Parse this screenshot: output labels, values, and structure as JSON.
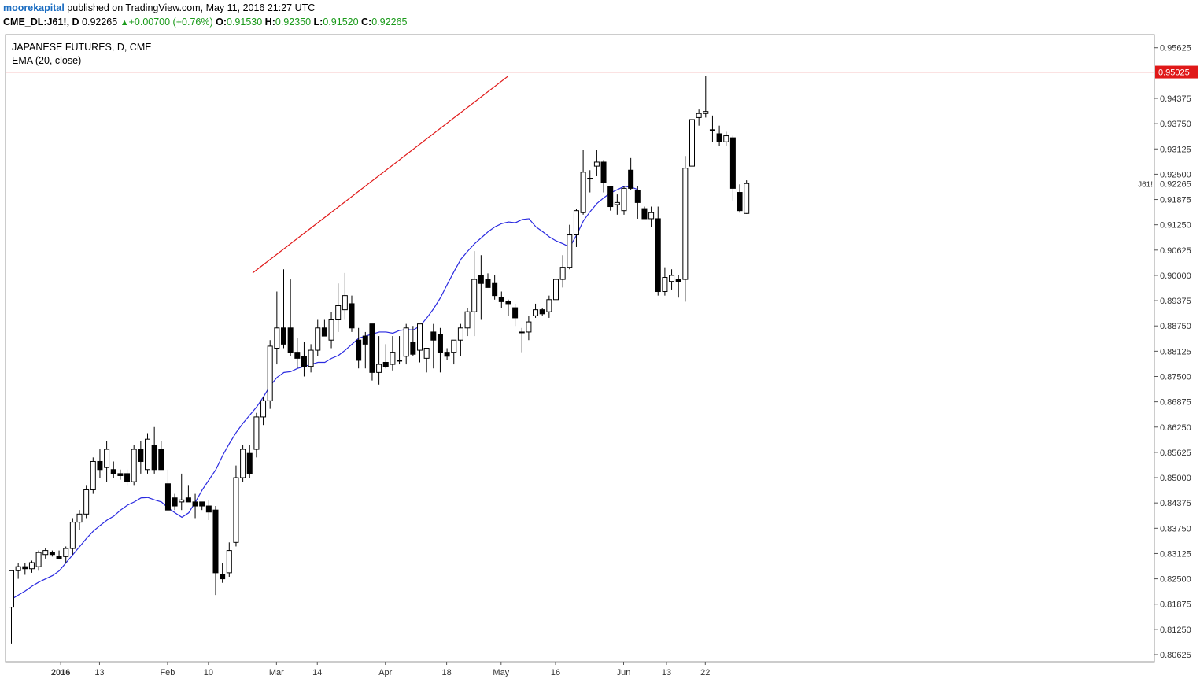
{
  "header": {
    "author": "moorekapital",
    "published_text": "published on TradingView.com, May 11, 2016 21:27 UTC",
    "symbol": "CME_DL:J61!, D",
    "last": "0.92265",
    "change": "+0.00700 (+0.76%)",
    "o_label": "O:",
    "o": "0.91530",
    "h_label": "H:",
    "h": "0.92350",
    "l_label": "L:",
    "l": "0.91520",
    "c_label": "C:",
    "c": "0.92265"
  },
  "legend": {
    "title": "JAPANESE FUTURES, D, CME",
    "indicator": "EMA (20, close)"
  },
  "colors": {
    "ema": "#2a2ae0",
    "trendline": "#e01818",
    "resistance": "#e01818",
    "axis": "#555555",
    "candle_up_fill": "#ffffff",
    "candle_down_fill": "#000000"
  },
  "chart_data": {
    "type": "candlestick",
    "symbol_badge": "J61!",
    "y_ticks": [
      "0.95625",
      "0.94375",
      "0.93750",
      "0.93125",
      "0.92500",
      "0.91875",
      "0.91250",
      "0.90625",
      "0.90000",
      "0.89375",
      "0.88750",
      "0.88125",
      "0.87500",
      "0.86875",
      "0.86250",
      "0.85625",
      "0.85000",
      "0.84375",
      "0.83750",
      "0.83125",
      "0.82500",
      "0.81875",
      "0.81250",
      "0.80625"
    ],
    "ylim": [
      0.8045,
      0.9595
    ],
    "x_ticks": [
      {
        "label": "2016",
        "idx": 7.3,
        "bold": true
      },
      {
        "label": "13",
        "idx": 13
      },
      {
        "label": "Feb",
        "idx": 23
      },
      {
        "label": "10",
        "idx": 29
      },
      {
        "label": "Mar",
        "idx": 39
      },
      {
        "label": "14",
        "idx": 45
      },
      {
        "label": "Apr",
        "idx": 55
      },
      {
        "label": "18",
        "idx": 64
      },
      {
        "label": "May",
        "idx": 72
      },
      {
        "label": "16",
        "idx": 80
      },
      {
        "label": "Jun",
        "idx": 90
      },
      {
        "label": "13",
        "idx": 96.3
      },
      {
        "label": "22",
        "idx": 102
      }
    ],
    "resistance": {
      "value": 0.95025,
      "label": "0.95025"
    },
    "last_price": {
      "value": 0.92265,
      "label": "0.92265"
    },
    "trendline": [
      {
        "idx": 35.5,
        "value": 0.9006
      },
      {
        "idx": 73.0,
        "value": 0.9492
      }
    ],
    "candles": [
      [
        0.818,
        0.827,
        0.809,
        0.827
      ],
      [
        0.827,
        0.829,
        0.825,
        0.828
      ],
      [
        0.828,
        0.829,
        0.826,
        0.8275
      ],
      [
        0.8275,
        0.8295,
        0.8265,
        0.829
      ],
      [
        0.828,
        0.832,
        0.827,
        0.8315
      ],
      [
        0.831,
        0.8325,
        0.83,
        0.832
      ],
      [
        0.8315,
        0.832,
        0.8305,
        0.831
      ],
      [
        0.8305,
        0.832,
        0.83,
        0.83
      ],
      [
        0.8305,
        0.833,
        0.829,
        0.8325
      ],
      [
        0.8325,
        0.84,
        0.831,
        0.839
      ],
      [
        0.839,
        0.842,
        0.837,
        0.841
      ],
      [
        0.841,
        0.848,
        0.84,
        0.847
      ],
      [
        0.847,
        0.855,
        0.846,
        0.854
      ],
      [
        0.854,
        0.857,
        0.85,
        0.852
      ],
      [
        0.8525,
        0.859,
        0.849,
        0.857
      ],
      [
        0.852,
        0.854,
        0.85,
        0.851
      ],
      [
        0.851,
        0.852,
        0.8495,
        0.8505
      ],
      [
        0.851,
        0.852,
        0.848,
        0.849
      ],
      [
        0.849,
        0.858,
        0.848,
        0.857
      ],
      [
        0.857,
        0.859,
        0.851,
        0.854
      ],
      [
        0.852,
        0.861,
        0.851,
        0.8595
      ],
      [
        0.858,
        0.8625,
        0.851,
        0.852
      ],
      [
        0.857,
        0.859,
        0.852,
        0.852
      ],
      [
        0.8485,
        0.852,
        0.8425,
        0.842
      ],
      [
        0.845,
        0.846,
        0.842,
        0.843
      ],
      [
        0.844,
        0.851,
        0.842,
        0.8445
      ],
      [
        0.845,
        0.848,
        0.844,
        0.844
      ],
      [
        0.844,
        0.846,
        0.84,
        0.843
      ],
      [
        0.844,
        0.844,
        0.842,
        0.843
      ],
      [
        0.843,
        0.8445,
        0.8395,
        0.8415
      ],
      [
        0.842,
        0.843,
        0.821,
        0.8265
      ],
      [
        0.826,
        0.829,
        0.824,
        0.825
      ],
      [
        0.8265,
        0.834,
        0.8255,
        0.832
      ],
      [
        0.834,
        0.853,
        0.833,
        0.85
      ],
      [
        0.85,
        0.858,
        0.849,
        0.857
      ],
      [
        0.856,
        0.858,
        0.85,
        0.851
      ],
      [
        0.857,
        0.866,
        0.855,
        0.865
      ],
      [
        0.865,
        0.87,
        0.863,
        0.869
      ],
      [
        0.869,
        0.884,
        0.867,
        0.8825
      ],
      [
        0.882,
        0.896,
        0.878,
        0.887
      ],
      [
        0.887,
        0.9015,
        0.882,
        0.883
      ],
      [
        0.887,
        0.899,
        0.88,
        0.881
      ],
      [
        0.881,
        0.8845,
        0.877,
        0.8795
      ],
      [
        0.88,
        0.8835,
        0.875,
        0.8775
      ],
      [
        0.8775,
        0.883,
        0.876,
        0.8815
      ],
      [
        0.8815,
        0.889,
        0.88,
        0.887
      ],
      [
        0.887,
        0.889,
        0.885,
        0.885
      ],
      [
        0.884,
        0.891,
        0.882,
        0.889
      ],
      [
        0.889,
        0.898,
        0.886,
        0.8925
      ],
      [
        0.8915,
        0.9006,
        0.889,
        0.895
      ],
      [
        0.893,
        0.895,
        0.886,
        0.887
      ],
      [
        0.884,
        0.887,
        0.877,
        0.879
      ],
      [
        0.885,
        0.886,
        0.877,
        0.883
      ],
      [
        0.888,
        0.887,
        0.874,
        0.876
      ],
      [
        0.876,
        0.885,
        0.873,
        0.878
      ],
      [
        0.8785,
        0.883,
        0.877,
        0.8775
      ],
      [
        0.878,
        0.885,
        0.8765,
        0.881
      ],
      [
        0.879,
        0.885,
        0.878,
        0.879
      ],
      [
        0.88,
        0.888,
        0.878,
        0.887
      ],
      [
        0.8835,
        0.8875,
        0.88,
        0.8805
      ],
      [
        0.8815,
        0.888,
        0.8785,
        0.888
      ],
      [
        0.8795,
        0.882,
        0.876,
        0.882
      ],
      [
        0.886,
        0.888,
        0.877,
        0.884
      ],
      [
        0.8855,
        0.887,
        0.876,
        0.881
      ],
      [
        0.881,
        0.882,
        0.879,
        0.88
      ],
      [
        0.881,
        0.884,
        0.878,
        0.884
      ],
      [
        0.884,
        0.888,
        0.88,
        0.887
      ],
      [
        0.887,
        0.892,
        0.885,
        0.891
      ],
      [
        0.891,
        0.906,
        0.885,
        0.899
      ],
      [
        0.9,
        0.905,
        0.889,
        0.898
      ],
      [
        0.899,
        0.9005,
        0.898,
        0.897
      ],
      [
        0.898,
        0.9,
        0.894,
        0.895
      ],
      [
        0.8945,
        0.896,
        0.892,
        0.8935
      ],
      [
        0.8935,
        0.894,
        0.89,
        0.893
      ],
      [
        0.892,
        0.893,
        0.8875,
        0.8895
      ],
      [
        0.886,
        0.887,
        0.881,
        0.886
      ],
      [
        0.886,
        0.89,
        0.884,
        0.8885
      ],
      [
        0.89,
        0.893,
        0.8895,
        0.8915
      ],
      [
        0.8915,
        0.892,
        0.89,
        0.8905
      ],
      [
        0.891,
        0.895,
        0.8895,
        0.894
      ],
      [
        0.894,
        0.902,
        0.893,
        0.899
      ],
      [
        0.899,
        0.905,
        0.897,
        0.902
      ],
      [
        0.902,
        0.9125,
        0.9015,
        0.91
      ],
      [
        0.91,
        0.9165,
        0.907,
        0.916
      ],
      [
        0.9155,
        0.931,
        0.915,
        0.9255
      ],
      [
        0.924,
        0.926,
        0.9205,
        0.924
      ],
      [
        0.927,
        0.931,
        0.9245,
        0.928
      ],
      [
        0.928,
        0.9285,
        0.9205,
        0.923
      ],
      [
        0.922,
        0.922,
        0.916,
        0.917
      ],
      [
        0.9175,
        0.92,
        0.915,
        0.918
      ],
      [
        0.916,
        0.922,
        0.915,
        0.9215
      ],
      [
        0.926,
        0.929,
        0.921,
        0.9215
      ],
      [
        0.921,
        0.922,
        0.914,
        0.918
      ],
      [
        0.9165,
        0.917,
        0.914,
        0.914
      ],
      [
        0.914,
        0.917,
        0.912,
        0.9155
      ],
      [
        0.914,
        0.917,
        0.895,
        0.896
      ],
      [
        0.896,
        0.902,
        0.895,
        0.8995
      ],
      [
        0.8985,
        0.9015,
        0.8965,
        0.9
      ],
      [
        0.899,
        0.9,
        0.8945,
        0.8985
      ],
      [
        0.899,
        0.9295,
        0.8935,
        0.9265
      ],
      [
        0.927,
        0.943,
        0.926,
        0.9385
      ],
      [
        0.939,
        0.941,
        0.937,
        0.94
      ],
      [
        0.94,
        0.9492,
        0.939,
        0.9405
      ],
      [
        0.936,
        0.9395,
        0.933,
        0.936
      ],
      [
        0.935,
        0.937,
        0.932,
        0.933
      ],
      [
        0.933,
        0.9355,
        0.932,
        0.9345
      ],
      [
        0.934,
        0.9345,
        0.9185,
        0.9215
      ],
      [
        0.9205,
        0.9225,
        0.9155,
        0.916
      ],
      [
        0.9153,
        0.9235,
        0.9152,
        0.9227
      ]
    ],
    "ema20": [
      0.82,
      0.821,
      0.822,
      0.8232,
      0.8242,
      0.825,
      0.8258,
      0.827,
      0.829,
      0.831,
      0.833,
      0.835,
      0.8368,
      0.8382,
      0.8395,
      0.8405,
      0.842,
      0.8432,
      0.844,
      0.845,
      0.8451,
      0.8445,
      0.844,
      0.8425,
      0.8413,
      0.8402,
      0.8413,
      0.844,
      0.847,
      0.8495,
      0.852,
      0.8555,
      0.8585,
      0.8612,
      0.8635,
      0.8655,
      0.8675,
      0.87,
      0.8728,
      0.8748,
      0.876,
      0.8762,
      0.877,
      0.8775,
      0.878,
      0.8785,
      0.8785,
      0.8795,
      0.8802,
      0.8815,
      0.883,
      0.8845,
      0.885,
      0.8855,
      0.886,
      0.886,
      0.8857,
      0.8864,
      0.8866,
      0.8865,
      0.8875,
      0.8895,
      0.8918,
      0.8945,
      0.8978,
      0.901,
      0.904,
      0.906,
      0.9078,
      0.9093,
      0.9108,
      0.912,
      0.9128,
      0.9132,
      0.913,
      0.9138,
      0.914,
      0.912,
      0.9108,
      0.9095,
      0.9085,
      0.9078,
      0.907,
      0.91,
      0.9135,
      0.9158,
      0.9178,
      0.9192,
      0.9204,
      0.9212,
      0.922,
      0.9218,
      0.9212
    ]
  }
}
